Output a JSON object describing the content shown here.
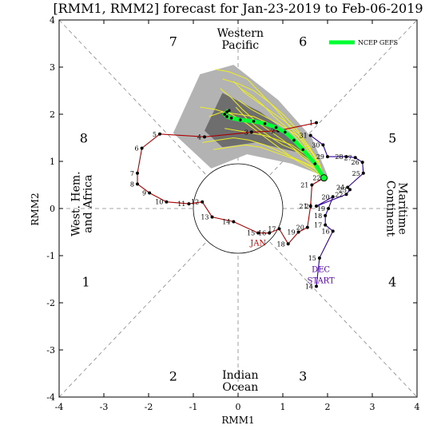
{
  "chart_data": {
    "type": "scatter",
    "title": "[RMM1, RMM2] forecast for Jan-23-2019 to Feb-06-2019",
    "xlabel": "RMM1",
    "ylabel": "RMM2",
    "xlim": [
      -4,
      4
    ],
    "ylim": [
      -4,
      4
    ],
    "x_ticks": [
      "-4",
      "-3",
      "-2",
      "-1",
      "0",
      "1",
      "2",
      "3",
      "4"
    ],
    "y_ticks": [
      "-4",
      "-3",
      "-2",
      "-1",
      "0",
      "1",
      "2",
      "3",
      "4"
    ],
    "grid": false,
    "legend": {
      "placement": "top-right",
      "entries": [
        {
          "label": "NCEP GEFS",
          "color": "#00ff33"
        }
      ]
    },
    "phase_numbers": [
      {
        "label": "1",
        "x": -3.4,
        "y": -1.55
      },
      {
        "label": "2",
        "x": -1.45,
        "y": -3.55
      },
      {
        "label": "3",
        "x": 1.45,
        "y": -3.55
      },
      {
        "label": "4",
        "x": 3.45,
        "y": -1.55
      },
      {
        "label": "5",
        "x": 3.45,
        "y": 1.5
      },
      {
        "label": "6",
        "x": 1.45,
        "y": 3.55
      },
      {
        "label": "7",
        "x": -1.45,
        "y": 3.55
      },
      {
        "label": "8",
        "x": -3.45,
        "y": 1.5
      }
    ],
    "region_labels": [
      {
        "lines": [
          "Western",
          "Pacific"
        ],
        "x": 0.05,
        "y": 3.6,
        "rotate": 0
      },
      {
        "lines": [
          "Indian",
          "Ocean"
        ],
        "x": 0.05,
        "y": -3.65,
        "rotate": 0
      },
      {
        "lines": [
          "West. Hem.",
          "and Africa"
        ],
        "x": -3.5,
        "y": 0.1,
        "rotate": -90
      },
      {
        "lines": [
          "Maritime",
          "Continent"
        ],
        "x": 3.55,
        "y": 0.0,
        "rotate": 90
      }
    ],
    "month_labels": [
      {
        "text": "JAN",
        "x": 0.45,
        "y": -0.72,
        "color": "#cc0000"
      },
      {
        "text": "DEC",
        "x": 1.85,
        "y": -1.28,
        "color": "#5500aa"
      },
      {
        "text": "START",
        "x": 1.85,
        "y": -1.52,
        "color": "#5500aa"
      }
    ],
    "series": [
      {
        "name": "DEC",
        "color": "#330099",
        "points": [
          {
            "label": "14",
            "x": 1.75,
            "y": -1.65
          },
          {
            "label": "15",
            "x": 1.82,
            "y": -1.05
          },
          {
            "label": "16",
            "x": 2.12,
            "y": -0.48
          },
          {
            "label": "17",
            "x": 1.95,
            "y": -0.35
          },
          {
            "label": "18",
            "x": 1.95,
            "y": -0.15
          },
          {
            "label": "19",
            "x": 2.02,
            "y": 0.0
          },
          {
            "label": "20",
            "x": 2.12,
            "y": 0.25
          },
          {
            "label": "21",
            "x": 1.75,
            "y": 0.05
          },
          {
            "label": "22",
            "x": 2.42,
            "y": 0.3
          },
          {
            "label": "23",
            "x": 2.5,
            "y": 0.4
          },
          {
            "label": "24",
            "x": 2.45,
            "y": 0.45
          },
          {
            "label": "25",
            "x": 2.8,
            "y": 0.75
          },
          {
            "label": "26",
            "x": 2.78,
            "y": 0.98
          },
          {
            "label": "27",
            "x": 2.62,
            "y": 1.08
          },
          {
            "label": "28",
            "x": 2.42,
            "y": 1.1
          },
          {
            "label": "29",
            "x": 2.0,
            "y": 1.1
          },
          {
            "label": "30",
            "x": 1.9,
            "y": 1.35
          },
          {
            "label": "31",
            "x": 1.62,
            "y": 1.55
          }
        ]
      },
      {
        "name": "JAN",
        "color": "#aa0000",
        "points": [
          {
            "label": "1",
            "x": 1.75,
            "y": 1.82
          },
          {
            "label": "2",
            "x": 0.9,
            "y": 1.65
          },
          {
            "label": "3",
            "x": 0.3,
            "y": 1.62
          },
          {
            "label": "4",
            "x": -0.75,
            "y": 1.52
          },
          {
            "label": "5",
            "x": -1.75,
            "y": 1.58
          },
          {
            "label": "6",
            "x": -2.15,
            "y": 1.28
          },
          {
            "label": "7",
            "x": -2.25,
            "y": 0.75
          },
          {
            "label": "8",
            "x": -2.25,
            "y": 0.52
          },
          {
            "label": "9",
            "x": -1.98,
            "y": 0.33
          },
          {
            "label": "10",
            "x": -1.6,
            "y": 0.14
          },
          {
            "label": "11",
            "x": -1.1,
            "y": 0.1
          },
          {
            "label": "12",
            "x": -0.8,
            "y": 0.14
          },
          {
            "label": "13",
            "x": -0.58,
            "y": -0.18
          },
          {
            "label": "14",
            "x": -0.1,
            "y": -0.28
          },
          {
            "label": "15",
            "x": 0.45,
            "y": -0.52
          },
          {
            "label": "16",
            "x": 0.7,
            "y": -0.52
          },
          {
            "label": "17",
            "x": 0.92,
            "y": -0.43
          },
          {
            "label": "18",
            "x": 1.12,
            "y": -0.75
          },
          {
            "label": "19",
            "x": 1.35,
            "y": -0.5
          },
          {
            "label": "20",
            "x": 1.55,
            "y": -0.4
          },
          {
            "label": "21",
            "x": 1.62,
            "y": 0.05
          },
          {
            "label": "21",
            "x": 1.65,
            "y": 0.5
          },
          {
            "label": "22",
            "x": 1.92,
            "y": 0.65
          }
        ]
      },
      {
        "name": "NCEP GEFS",
        "color": "#00ff33",
        "points": [
          {
            "x": 1.92,
            "y": 0.65
          },
          {
            "x": 1.72,
            "y": 0.95
          },
          {
            "x": 1.45,
            "y": 1.25
          },
          {
            "x": 1.25,
            "y": 1.45
          },
          {
            "x": 1.05,
            "y": 1.62
          },
          {
            "x": 0.85,
            "y": 1.72
          },
          {
            "x": 0.6,
            "y": 1.8
          },
          {
            "x": 0.35,
            "y": 1.85
          },
          {
            "x": 0.05,
            "y": 1.88
          },
          {
            "x": -0.15,
            "y": 1.92
          },
          {
            "x": -0.25,
            "y": 1.95
          },
          {
            "x": -0.3,
            "y": 2.0
          },
          {
            "x": -0.25,
            "y": 2.05
          },
          {
            "x": -0.2,
            "y": 2.08
          }
        ]
      }
    ],
    "ensemble_color": "#eeee22",
    "ensemble_members": [
      [
        [
          1.92,
          0.65
        ],
        [
          1.7,
          0.95
        ],
        [
          1.35,
          1.2
        ],
        [
          1.0,
          1.45
        ],
        [
          0.7,
          1.65
        ],
        [
          0.4,
          1.85
        ],
        [
          0.1,
          2.1
        ],
        [
          -0.15,
          2.35
        ],
        [
          -0.4,
          2.55
        ]
      ],
      [
        [
          1.92,
          0.65
        ],
        [
          1.75,
          0.9
        ],
        [
          1.5,
          1.15
        ],
        [
          1.2,
          1.35
        ],
        [
          0.9,
          1.45
        ],
        [
          0.6,
          1.55
        ],
        [
          0.3,
          1.6
        ],
        [
          0.0,
          1.65
        ],
        [
          -0.3,
          1.7
        ]
      ],
      [
        [
          1.92,
          0.65
        ],
        [
          1.78,
          0.95
        ],
        [
          1.6,
          1.3
        ],
        [
          1.35,
          1.6
        ],
        [
          1.05,
          1.85
        ],
        [
          0.75,
          2.05
        ],
        [
          0.45,
          2.25
        ],
        [
          0.15,
          2.45
        ],
        [
          -0.1,
          2.7
        ]
      ],
      [
        [
          1.92,
          0.65
        ],
        [
          1.65,
          0.9
        ],
        [
          1.3,
          1.05
        ],
        [
          0.95,
          1.2
        ],
        [
          0.6,
          1.35
        ],
        [
          0.25,
          1.45
        ],
        [
          -0.1,
          1.5
        ],
        [
          -0.45,
          1.45
        ],
        [
          -0.8,
          1.4
        ]
      ],
      [
        [
          1.92,
          0.65
        ],
        [
          1.8,
          1.0
        ],
        [
          1.55,
          1.35
        ],
        [
          1.3,
          1.7
        ],
        [
          1.0,
          2.0
        ],
        [
          0.7,
          2.25
        ],
        [
          0.35,
          2.5
        ],
        [
          0.0,
          2.65
        ],
        [
          -0.35,
          2.75
        ]
      ],
      [
        [
          1.92,
          0.65
        ],
        [
          1.7,
          0.85
        ],
        [
          1.4,
          1.0
        ],
        [
          1.1,
          1.1
        ],
        [
          0.8,
          1.2
        ],
        [
          0.5,
          1.3
        ],
        [
          0.15,
          1.35
        ],
        [
          -0.2,
          1.3
        ],
        [
          -0.55,
          1.25
        ]
      ],
      [
        [
          1.92,
          0.65
        ],
        [
          1.72,
          1.0
        ],
        [
          1.45,
          1.4
        ],
        [
          1.15,
          1.75
        ],
        [
          0.85,
          2.1
        ],
        [
          0.5,
          2.45
        ],
        [
          0.2,
          2.75
        ],
        [
          -0.2,
          2.9
        ],
        [
          -0.5,
          2.95
        ]
      ],
      [
        [
          1.92,
          0.65
        ],
        [
          1.6,
          0.85
        ],
        [
          1.25,
          1.05
        ],
        [
          0.9,
          1.3
        ],
        [
          0.55,
          1.55
        ],
        [
          0.2,
          1.8
        ],
        [
          -0.15,
          2.0
        ],
        [
          -0.5,
          2.1
        ],
        [
          -0.85,
          2.15
        ]
      ],
      [
        [
          1.92,
          0.65
        ],
        [
          1.78,
          0.9
        ],
        [
          1.55,
          1.2
        ],
        [
          1.3,
          1.5
        ],
        [
          1.05,
          1.75
        ],
        [
          0.8,
          1.95
        ],
        [
          0.55,
          2.2
        ],
        [
          0.3,
          2.4
        ],
        [
          0.05,
          2.55
        ]
      ],
      [
        [
          1.92,
          0.65
        ],
        [
          1.68,
          0.95
        ],
        [
          1.38,
          1.3
        ],
        [
          1.05,
          1.6
        ],
        [
          0.7,
          1.8
        ],
        [
          0.35,
          1.95
        ],
        [
          0.0,
          2.0
        ],
        [
          -0.35,
          2.05
        ],
        [
          -0.65,
          1.95
        ]
      ],
      [
        [
          1.92,
          0.65
        ],
        [
          1.75,
          0.85
        ],
        [
          1.5,
          1.05
        ],
        [
          1.25,
          1.25
        ],
        [
          1.0,
          1.35
        ],
        [
          0.75,
          1.5
        ],
        [
          0.45,
          1.7
        ],
        [
          0.2,
          1.9
        ],
        [
          -0.05,
          2.15
        ]
      ],
      [
        [
          1.92,
          0.65
        ],
        [
          1.8,
          0.98
        ],
        [
          1.6,
          1.25
        ],
        [
          1.4,
          1.5
        ],
        [
          1.15,
          1.65
        ],
        [
          0.9,
          1.8
        ],
        [
          0.6,
          1.95
        ],
        [
          0.3,
          2.1
        ],
        [
          0.0,
          2.3
        ]
      ]
    ],
    "ensemble_spread_outer": [
      [
        -1.45,
        1.6
      ],
      [
        -0.85,
        2.85
      ],
      [
        -0.1,
        3.05
      ],
      [
        0.9,
        2.3
      ],
      [
        1.65,
        1.5
      ],
      [
        2.0,
        0.7
      ],
      [
        1.75,
        0.75
      ],
      [
        1.2,
        0.95
      ],
      [
        0.2,
        1.15
      ],
      [
        -0.6,
        0.85
      ]
    ],
    "ensemble_spread_inner": [
      [
        -0.75,
        1.65
      ],
      [
        -0.35,
        2.45
      ],
      [
        0.5,
        2.05
      ],
      [
        1.1,
        1.6
      ],
      [
        1.85,
        0.85
      ],
      [
        1.3,
        1.2
      ],
      [
        0.4,
        1.4
      ],
      [
        -0.35,
        1.3
      ]
    ]
  }
}
